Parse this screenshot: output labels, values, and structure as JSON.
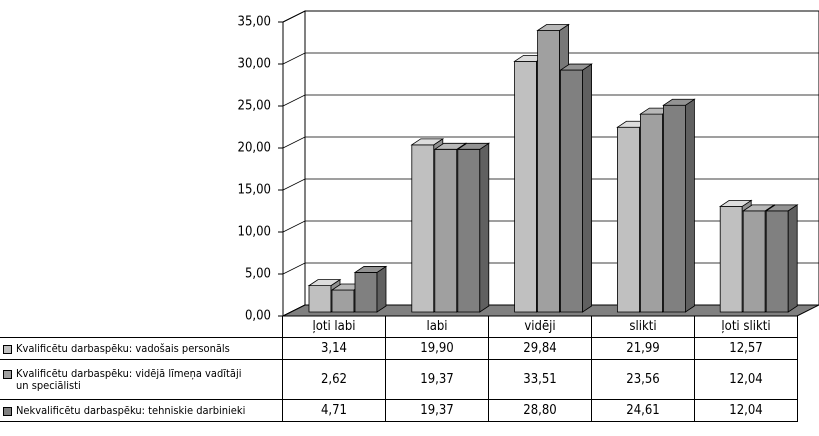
{
  "chart_data": {
    "type": "bar3d",
    "categories": [
      "ļoti labi",
      "labi",
      "vidēji",
      "slikti",
      "ļoti slikti"
    ],
    "series": [
      {
        "name": "Kvalificētu darbaspēku: vadošais personāls",
        "color": "#c0c0c0",
        "values": [
          3.14,
          19.9,
          29.84,
          21.99,
          12.57
        ],
        "value_labels": [
          "3,14",
          "19,90",
          "29,84",
          "21,99",
          "12,57"
        ]
      },
      {
        "name": "Kvalificētu darbaspēku: vidējā līmeņa vadītāji un speciālisti",
        "color": "#a0a0a0",
        "values": [
          2.62,
          19.37,
          33.51,
          23.56,
          12.04
        ],
        "value_labels": [
          "2,62",
          "19,37",
          "33,51",
          "23,56",
          "12,04"
        ]
      },
      {
        "name": "Nekvalificētu darbaspēku: tehniskie darbinieki",
        "color": "#808080",
        "values": [
          4.71,
          19.37,
          28.8,
          24.61,
          12.04
        ],
        "value_labels": [
          "4,71",
          "19,37",
          "28,80",
          "24,61",
          "12,04"
        ]
      }
    ],
    "ylim": [
      0,
      35
    ],
    "yticks": [
      {
        "value": 0,
        "label": "0,00"
      },
      {
        "value": 5,
        "label": "5,00"
      },
      {
        "value": 10,
        "label": "10,00"
      },
      {
        "value": 15,
        "label": "15,00"
      },
      {
        "value": 20,
        "label": "20,00"
      },
      {
        "value": 25,
        "label": "25,00"
      },
      {
        "value": 30,
        "label": "30,00"
      },
      {
        "value": 35,
        "label": "35,00"
      }
    ],
    "grid": true
  }
}
